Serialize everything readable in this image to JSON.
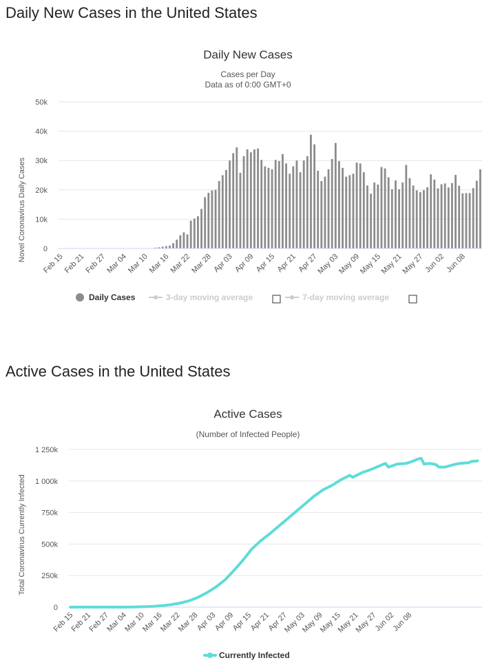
{
  "page": {
    "section1_title": "Daily New Cases in the United States",
    "section2_title": "Active Cases in the United States"
  },
  "chart_data": [
    {
      "type": "bar",
      "title": "Daily New Cases",
      "subtitle_lines": [
        "Cases per Day",
        "Data as of 0:00 GMT+0"
      ],
      "ylabel": "Novel Coronavirus Daily Cases",
      "xlabel": "",
      "ylim": [
        0,
        50000
      ],
      "y_ticks": [
        0,
        10000,
        20000,
        30000,
        40000,
        50000
      ],
      "y_tick_labels": [
        "0",
        "10k",
        "20k",
        "30k",
        "40k",
        "50k"
      ],
      "x_tick_labels": [
        "Feb 15",
        "Feb 21",
        "Feb 27",
        "Mar 04",
        "Mar 10",
        "Mar 16",
        "Mar 22",
        "Mar 28",
        "Apr 03",
        "Apr 09",
        "Apr 15",
        "Apr 21",
        "Apr 27",
        "May 03",
        "May 09",
        "May 15",
        "May 21",
        "May 27",
        "Jun 02",
        "Jun 08"
      ],
      "x_tick_every": 6,
      "grid": true,
      "legend_position": "bottom",
      "series": [
        {
          "name": "Daily Cases",
          "color": "#8c8c8c",
          "values": [
            0,
            0,
            0,
            0,
            0,
            0,
            0,
            0,
            0,
            0,
            0,
            0,
            0,
            0,
            0,
            0,
            0,
            0,
            0,
            0,
            0,
            0,
            0,
            0,
            0,
            0,
            0,
            300,
            400,
            600,
            800,
            1000,
            1800,
            3000,
            4500,
            5500,
            4800,
            9500,
            10200,
            11000,
            13500,
            17500,
            19000,
            19800,
            20000,
            23000,
            25000,
            26800,
            30000,
            32500,
            34500,
            25800,
            31500,
            33800,
            32800,
            33800,
            34100,
            30200,
            28000,
            27500,
            27000,
            30200,
            29800,
            32200,
            29000,
            25500,
            28000,
            30000,
            26000,
            30000,
            31500,
            38800,
            35500,
            26500,
            23000,
            24500,
            27000,
            30500,
            36000,
            29800,
            27500,
            24500,
            25000,
            25500,
            29300,
            29000,
            26000,
            21500,
            18700,
            22500,
            21800,
            27800,
            27300,
            24300,
            20200,
            23200,
            20200,
            22500,
            28500,
            24000,
            21500,
            19800,
            19200,
            19900,
            20900,
            25300,
            23500,
            20500,
            21900,
            22200,
            20800,
            22300,
            25100,
            21400,
            18800,
            18900,
            18900,
            20600,
            23100,
            27000
          ]
        },
        {
          "name": "3-day moving average",
          "color": "#cccccc",
          "visible": false
        },
        {
          "name": "7-day moving average",
          "color": "#cccccc",
          "visible": false
        }
      ]
    },
    {
      "type": "line",
      "title": "Active Cases",
      "subtitle_lines": [
        "(Number of Infected People)"
      ],
      "ylabel": "Total Coronavirus Currently Infected",
      "xlabel": "",
      "ylim": [
        0,
        1250000
      ],
      "y_ticks": [
        0,
        250000,
        500000,
        750000,
        1000000,
        1250000
      ],
      "y_tick_labels": [
        "0",
        "250k",
        "500k",
        "750k",
        "1 000k",
        "1 250k"
      ],
      "x_tick_labels": [
        "Feb 15",
        "Feb 21",
        "Feb 27",
        "Mar 04",
        "Mar 10",
        "Mar 16",
        "Mar 22",
        "Mar 28",
        "Apr 03",
        "Apr 09",
        "Apr 15",
        "Apr 21",
        "Apr 27",
        "May 03",
        "May 09",
        "May 15",
        "May 21",
        "May 27",
        "Jun 02",
        "Jun 08"
      ],
      "x_tick_every": 6,
      "grid": true,
      "legend_position": "bottom",
      "series": [
        {
          "name": "Currently Infected",
          "color": "#5fdcd8",
          "points": [
            [
              0,
              0
            ],
            [
              19,
              0
            ],
            [
              24,
              3000
            ],
            [
              28,
              6000
            ],
            [
              31,
              12000
            ],
            [
              34,
              20000
            ],
            [
              37,
              32000
            ],
            [
              40,
              50000
            ],
            [
              43,
              78000
            ],
            [
              46,
              115000
            ],
            [
              49,
              160000
            ],
            [
              52,
              215000
            ],
            [
              55,
              290000
            ],
            [
              58,
              370000
            ],
            [
              61,
              460000
            ],
            [
              64,
              525000
            ],
            [
              67,
              580000
            ],
            [
              70,
              640000
            ],
            [
              73,
              700000
            ],
            [
              76,
              760000
            ],
            [
              79,
              820000
            ],
            [
              82,
              880000
            ],
            [
              85,
              930000
            ],
            [
              88,
              965000
            ],
            [
              91,
              1010000
            ],
            [
              94,
              1045000
            ],
            [
              95,
              1030000
            ],
            [
              98,
              1065000
            ],
            [
              101,
              1090000
            ],
            [
              104,
              1120000
            ],
            [
              106,
              1140000
            ],
            [
              107,
              1110000
            ],
            [
              110,
              1135000
            ],
            [
              113,
              1140000
            ],
            [
              115,
              1155000
            ],
            [
              117,
              1175000
            ],
            [
              118,
              1180000
            ],
            [
              119,
              1135000
            ],
            [
              121,
              1140000
            ],
            [
              123,
              1130000
            ],
            [
              124,
              1110000
            ],
            [
              126,
              1110000
            ],
            [
              129,
              1130000
            ],
            [
              131,
              1140000
            ],
            [
              134,
              1145000
            ],
            [
              135,
              1155000
            ],
            [
              137,
              1160000
            ]
          ]
        }
      ]
    }
  ]
}
